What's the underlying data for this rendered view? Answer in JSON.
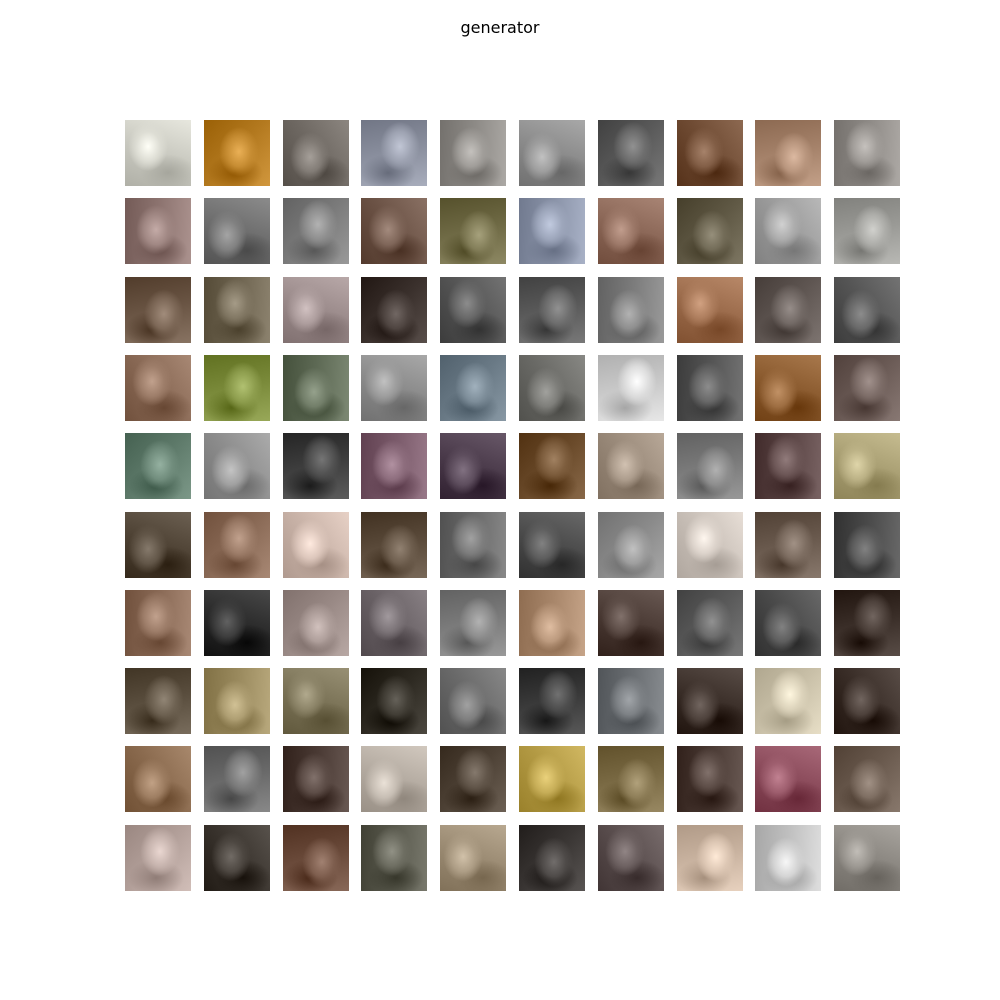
{
  "figure": {
    "title": "generator"
  },
  "samples": {
    "rows": 10,
    "cols": 10,
    "palette": [
      [
        "#c9c9c0",
        "#b3791f",
        "#6e6862",
        "#8a8f9e",
        "#8d8a86",
        "#8a8a8a",
        "#5a5a5a",
        "#6f4b33",
        "#a5826a",
        "#8e8a86"
      ],
      [
        "#8d7470",
        "#6d6d6d",
        "#7b7b7b",
        "#6c5346",
        "#6f6a45",
        "#8a93a8",
        "#8a6656",
        "#5f5844",
        "#9a9a9a",
        "#9a9a96"
      ],
      [
        "#6a5544",
        "#6e6450",
        "#9a8a8a",
        "#3a302c",
        "#555555",
        "#5a5a5a",
        "#7b7b7b",
        "#9a6a4a",
        "#5f5652",
        "#555555"
      ],
      [
        "#8a6a56",
        "#7a8a3a",
        "#5e6a55",
        "#8a8a8a",
        "#6a7a86",
        "#6a6a66",
        "#c9c9c9",
        "#555555",
        "#8a5a2e",
        "#6a5a55"
      ],
      [
        "#5e7a6a",
        "#8d8d8d",
        "#3e3e3e",
        "#7a5a6a",
        "#4a3a4a",
        "#6a4a2a",
        "#9a8a7a",
        "#7a7a7a",
        "#5a4444",
        "#a89e72"
      ],
      [
        "#4e4234",
        "#8a6a56",
        "#c9b3a8",
        "#5a4a3a",
        "#6a6a6a",
        "#4a4a4a",
        "#8a8a8a",
        "#c9c0b8",
        "#6a5a4e",
        "#4a4a4a"
      ],
      [
        "#8a6a56",
        "#2a2a2a",
        "#9a8a86",
        "#6a6266",
        "#7b7b7b",
        "#a8866a",
        "#4a3a34",
        "#5a5a5a",
        "#4a4a4a",
        "#3a2e28"
      ],
      [
        "#5a4e3e",
        "#9a8a5e",
        "#7a7256",
        "#2e2a22",
        "#6a6a6a",
        "#3a3a3a",
        "#6a6e72",
        "#3a2e28",
        "#c9c0a8",
        "#3a2e28"
      ],
      [
        "#8a6a4e",
        "#6a6a6a",
        "#4a3a34",
        "#b3aaa0",
        "#4e4236",
        "#b39a44",
        "#7a6a44",
        "#4a3a34",
        "#8a4a5a",
        "#6a5a4e"
      ],
      [
        "#b3a09a",
        "#3a342e",
        "#6a4a3a",
        "#5a5a4e",
        "#9a8a72",
        "#3a3634",
        "#5a4e4e",
        "#c9b3a0",
        "#c0c0c0",
        "#8a8680"
      ]
    ]
  }
}
